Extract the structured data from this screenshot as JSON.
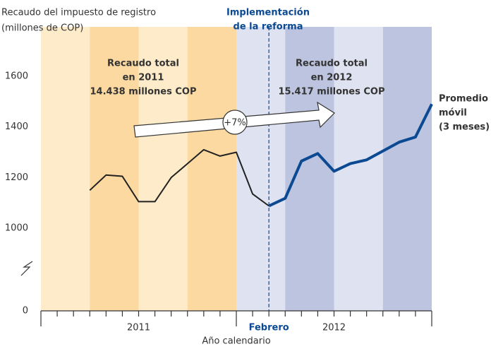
{
  "chart_data": {
    "type": "line",
    "y_label": [
      "Recaudo del impuesto de registro",
      "(millones de COP)"
    ],
    "x_label": "Año calendario",
    "categories": [
      null,
      null,
      null,
      null,
      null,
      null,
      null,
      null,
      null,
      null,
      null,
      null,
      null,
      null,
      "Febrero",
      null,
      null,
      null,
      null,
      null,
      null,
      null,
      null,
      null,
      null
    ],
    "year_labels": [
      "2011",
      "2012"
    ],
    "series": [
      {
        "name": null,
        "color": "#222222",
        "values": [
          null,
          null,
          null,
          1150,
          1210,
          1205,
          1105,
          1105,
          1200,
          1255,
          1310,
          1285,
          1300,
          1135,
          1088,
          null,
          null,
          null,
          null,
          null,
          null,
          null,
          null,
          null,
          null
        ]
      },
      {
        "name": [
          "Promedio",
          "móvil",
          "(3 meses)"
        ],
        "color": "#0b4a93",
        "values": [
          null,
          null,
          null,
          null,
          null,
          null,
          null,
          null,
          null,
          null,
          null,
          null,
          null,
          null,
          1088,
          1118,
          1265,
          1295,
          1225,
          1255,
          1270,
          1305,
          1340,
          1360,
          1490
        ]
      }
    ],
    "ylim": [
      1000,
      1600
    ],
    "yticks": [
      0,
      1000,
      1200,
      1400,
      1600
    ],
    "axis_break": true,
    "annotations": [
      {
        "lines": [
          "Implementación",
          "de la reforma"
        ]
      },
      {
        "lines": [
          "Recaudo total",
          "en 2011",
          "14.438 millones COP"
        ]
      },
      {
        "lines": [
          "Recaudo total",
          "en 2012",
          "15.417 millones COP"
        ]
      },
      {
        "lines": [
          "+7%"
        ]
      }
    ]
  }
}
